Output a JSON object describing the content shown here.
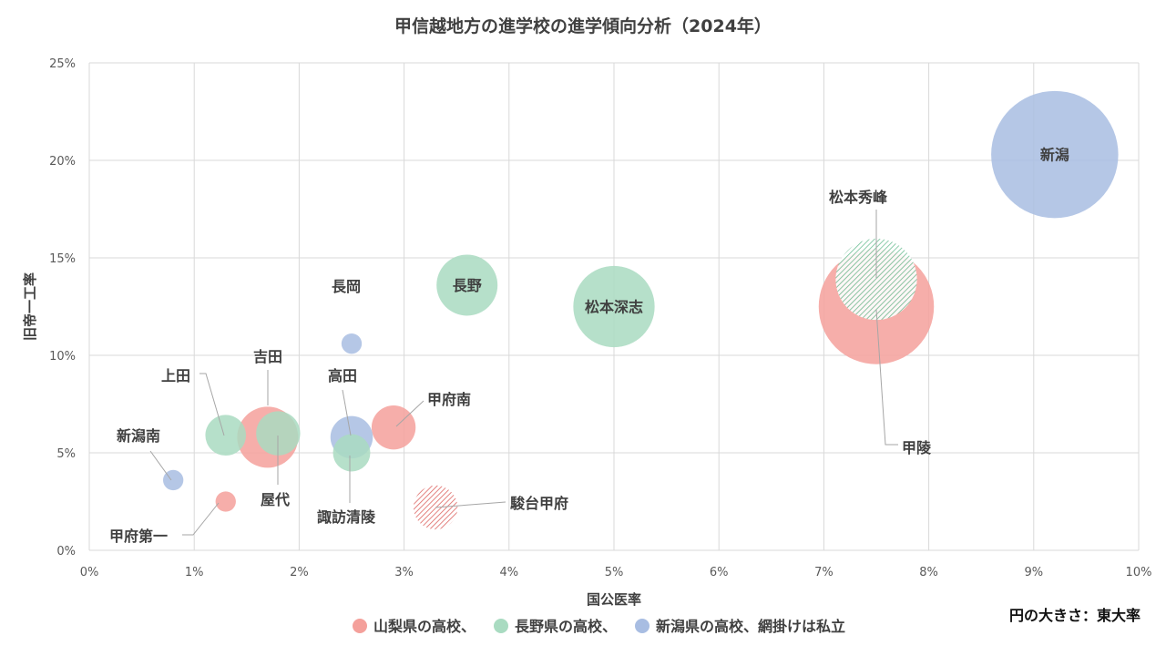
{
  "chart_data": {
    "type": "scatter",
    "title": "甲信越地方の進学校の進学傾向分析（2024年）",
    "xlabel": "国公医率",
    "ylabel": "旧帝一工率",
    "xlim": [
      0,
      10
    ],
    "ylim": [
      0,
      25
    ],
    "x_ticks": [
      "0%",
      "1%",
      "2%",
      "3%",
      "4%",
      "5%",
      "6%",
      "7%",
      "8%",
      "9%",
      "10%"
    ],
    "y_ticks": [
      "0%",
      "5%",
      "10%",
      "15%",
      "20%",
      "25%"
    ],
    "grid": true,
    "size_note": "円の大きさ：東大率",
    "legend": [
      {
        "name": "山梨県の高校、",
        "color": "#f4a09b"
      },
      {
        "name": "長野県の高校、",
        "color": "#a9dbc1"
      },
      {
        "name": "新潟県の高校、網掛けは私立",
        "color": "#a8bde2"
      }
    ],
    "colors": {
      "yamanashi": "#f4a09b",
      "nagano": "#a9dbc1",
      "niigata": "#a8bde2",
      "grid": "#d9d9d9"
    },
    "points": [
      {
        "name": "新潟",
        "x": 9.2,
        "y": 20.3,
        "size": 75,
        "group": "niigata",
        "private": false
      },
      {
        "name": "松本秀峰",
        "x": 7.5,
        "y": 13.9,
        "size": 48,
        "group": "nagano",
        "private": true
      },
      {
        "name": "甲陵",
        "x": 7.5,
        "y": 12.5,
        "size": 68,
        "group": "yamanashi",
        "private": false
      },
      {
        "name": "松本深志",
        "x": 5.0,
        "y": 12.5,
        "size": 48,
        "group": "nagano",
        "private": false
      },
      {
        "name": "長野",
        "x": 3.6,
        "y": 13.6,
        "size": 36,
        "group": "nagano",
        "private": false
      },
      {
        "name": "長岡",
        "x": 2.5,
        "y": 10.6,
        "size": 12,
        "group": "niigata",
        "private": false
      },
      {
        "name": "甲府南",
        "x": 2.9,
        "y": 6.3,
        "size": 26,
        "group": "yamanashi",
        "private": false
      },
      {
        "name": "高田",
        "x": 2.5,
        "y": 5.8,
        "size": 25,
        "group": "niigata",
        "private": false
      },
      {
        "name": "諏訪清陵",
        "x": 2.5,
        "y": 5.0,
        "size": 22,
        "group": "nagano",
        "private": false
      },
      {
        "name": "駿台甲府",
        "x": 3.3,
        "y": 2.2,
        "size": 26,
        "group": "yamanashi",
        "private": true
      },
      {
        "name": "屋代",
        "x": 1.8,
        "y": 6.0,
        "size": 26,
        "group": "nagano",
        "private": false
      },
      {
        "name": "吉田",
        "x": 1.7,
        "y": 5.8,
        "size": 36,
        "group": "yamanashi",
        "private": false
      },
      {
        "name": "上田",
        "x": 1.3,
        "y": 5.9,
        "size": 24,
        "group": "nagano",
        "private": false
      },
      {
        "name": "新潟南",
        "x": 0.8,
        "y": 3.6,
        "size": 12,
        "group": "niigata",
        "private": false
      },
      {
        "name": "甲府第一",
        "x": 1.3,
        "y": 2.5,
        "size": 12,
        "group": "yamanashi",
        "private": false
      }
    ]
  }
}
